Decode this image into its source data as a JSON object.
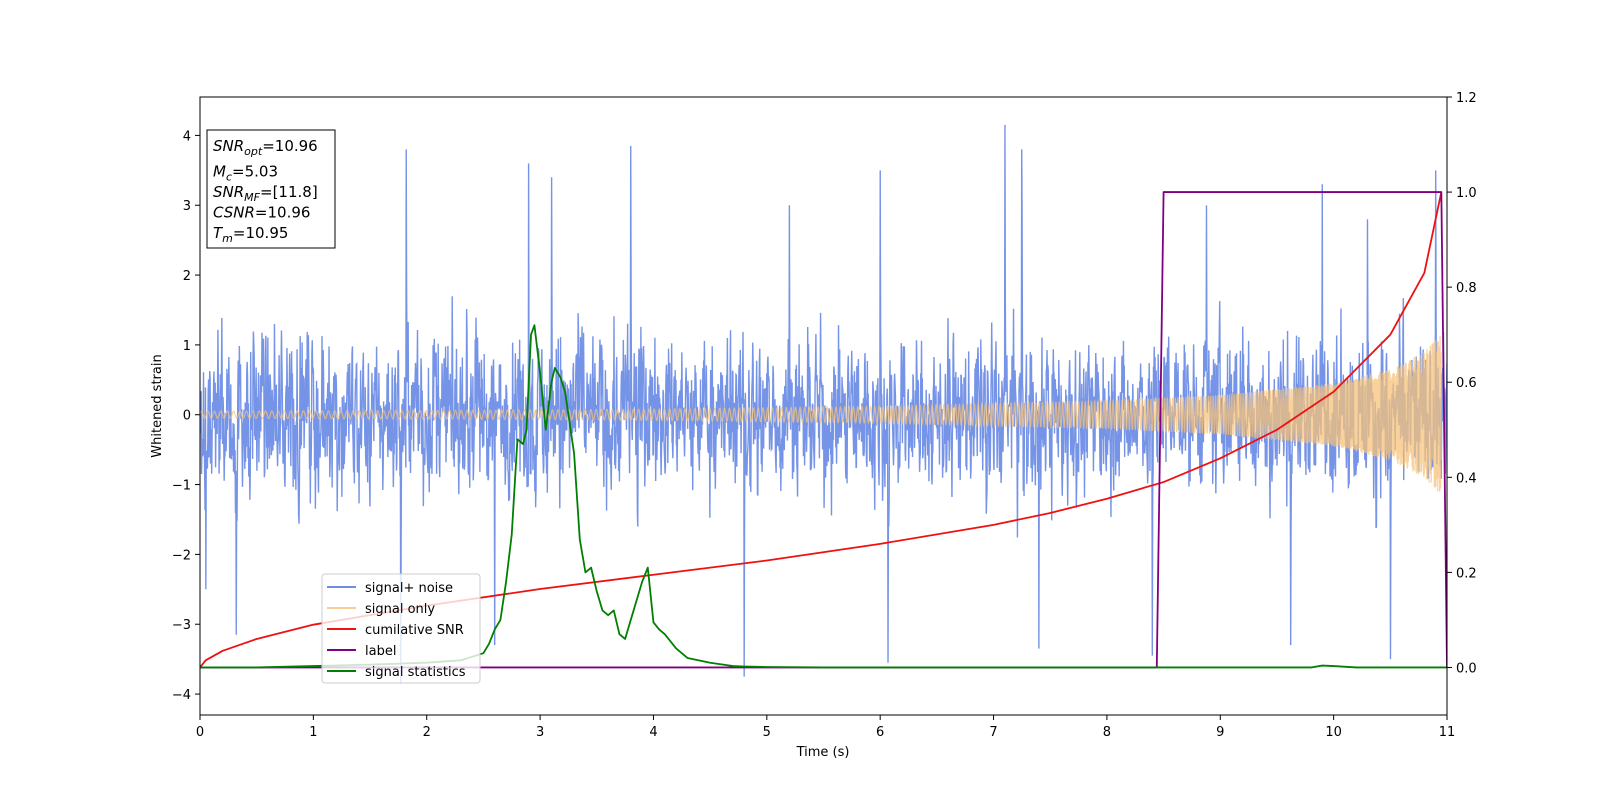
{
  "chart_data": {
    "type": "line",
    "xlabel": "Time (s)",
    "ylabel": "Whitened strain",
    "xlim": [
      0,
      11
    ],
    "ylim_left": [
      -4.3,
      4.55
    ],
    "ylim_right": [
      -0.1,
      1.2
    ],
    "xticks": [
      0,
      1,
      2,
      3,
      4,
      5,
      6,
      7,
      8,
      9,
      10,
      11
    ],
    "yticks_left": [
      -4,
      -3,
      -2,
      -1,
      0,
      1,
      2,
      3,
      4
    ],
    "yticks_left_labels": [
      "−4",
      "−3",
      "−2",
      "−1",
      "0",
      "1",
      "2",
      "3",
      "4"
    ],
    "yticks_right": [
      0.0,
      0.2,
      0.4,
      0.6,
      0.8,
      1.0,
      1.2
    ],
    "yticks_right_labels": [
      "0.0",
      "0.2",
      "0.4",
      "0.6",
      "0.8",
      "1.0",
      "1.2"
    ],
    "legend_placement": "lower-left",
    "series": [
      {
        "name": "signal+ noise",
        "axis": "left",
        "color": "#6f8ee6",
        "style": "dense-noise",
        "envelope": [
          [
            0.0,
            2.4
          ],
          [
            1.0,
            2.4
          ],
          [
            2.0,
            2.5
          ],
          [
            3.0,
            2.5
          ],
          [
            4.0,
            2.4
          ],
          [
            5.0,
            2.3
          ],
          [
            6.0,
            2.3
          ],
          [
            7.0,
            2.4
          ],
          [
            8.0,
            2.3
          ],
          [
            9.0,
            2.4
          ],
          [
            10.0,
            2.3
          ],
          [
            11.0,
            2.3
          ]
        ],
        "spikes": [
          [
            1.82,
            3.8
          ],
          [
            2.9,
            3.6
          ],
          [
            3.1,
            3.4
          ],
          [
            3.8,
            3.85
          ],
          [
            7.1,
            4.15
          ],
          [
            7.25,
            3.8
          ],
          [
            4.8,
            -3.75
          ],
          [
            1.77,
            -3.85
          ],
          [
            0.32,
            -3.15
          ],
          [
            5.2,
            3.0
          ],
          [
            6.0,
            3.5
          ],
          [
            6.07,
            -3.55
          ],
          [
            8.4,
            -3.45
          ],
          [
            10.9,
            3.5
          ],
          [
            10.5,
            -3.5
          ],
          [
            0.05,
            -2.5
          ],
          [
            2.6,
            -3.3
          ],
          [
            9.62,
            -3.3
          ],
          [
            7.4,
            -3.35
          ],
          [
            8.88,
            3.0
          ],
          [
            9.9,
            3.3
          ],
          [
            10.3,
            2.8
          ]
        ]
      },
      {
        "name": "signal only",
        "axis": "left",
        "color": "#f5c27a",
        "style": "chirp",
        "amplitude": [
          [
            0.0,
            0.05
          ],
          [
            2.0,
            0.06
          ],
          [
            4.0,
            0.08
          ],
          [
            6.0,
            0.12
          ],
          [
            8.0,
            0.2
          ],
          [
            9.0,
            0.28
          ],
          [
            10.0,
            0.45
          ],
          [
            10.5,
            0.65
          ],
          [
            10.8,
            0.9
          ],
          [
            10.95,
            1.15
          ]
        ]
      },
      {
        "name": "cumilative SNR",
        "axis": "right",
        "color": "#ee1111",
        "x": [
          0.0,
          0.05,
          0.2,
          0.5,
          1.0,
          1.5,
          2.0,
          3.0,
          4.0,
          5.0,
          6.0,
          7.0,
          7.5,
          8.0,
          8.5,
          9.0,
          9.5,
          10.0,
          10.5,
          10.8,
          10.95
        ],
        "y": [
          0.0,
          0.015,
          0.035,
          0.06,
          0.09,
          0.11,
          0.13,
          0.165,
          0.195,
          0.225,
          0.26,
          0.3,
          0.325,
          0.355,
          0.39,
          0.44,
          0.5,
          0.58,
          0.7,
          0.83,
          1.0
        ]
      },
      {
        "name": "label",
        "axis": "right",
        "color": "#800080",
        "x": [
          0.0,
          8.44,
          8.5,
          10.95,
          11.0
        ],
        "y": [
          0.0,
          0.0,
          1.0,
          1.0,
          0.0
        ]
      },
      {
        "name": "signal statistics",
        "axis": "right",
        "color": "#007f00",
        "x": [
          0.0,
          0.5,
          1.0,
          1.5,
          2.0,
          2.3,
          2.5,
          2.55,
          2.6,
          2.65,
          2.7,
          2.75,
          2.8,
          2.85,
          2.88,
          2.92,
          2.95,
          3.0,
          3.05,
          3.1,
          3.13,
          3.18,
          3.22,
          3.3,
          3.35,
          3.4,
          3.45,
          3.5,
          3.55,
          3.6,
          3.65,
          3.7,
          3.75,
          3.8,
          3.85,
          3.9,
          3.95,
          4.0,
          4.05,
          4.1,
          4.2,
          4.3,
          4.5,
          4.7,
          4.8,
          5.0,
          5.5,
          6.0,
          7.0,
          8.0,
          9.0,
          9.5,
          9.8,
          9.9,
          10.0,
          10.2,
          10.5,
          11.0
        ],
        "y": [
          0.0,
          0.0,
          0.003,
          0.006,
          0.01,
          0.015,
          0.03,
          0.05,
          0.08,
          0.1,
          0.18,
          0.28,
          0.48,
          0.47,
          0.5,
          0.7,
          0.72,
          0.62,
          0.5,
          0.6,
          0.63,
          0.61,
          0.58,
          0.45,
          0.27,
          0.2,
          0.21,
          0.16,
          0.12,
          0.11,
          0.12,
          0.07,
          0.06,
          0.1,
          0.14,
          0.18,
          0.21,
          0.095,
          0.08,
          0.07,
          0.04,
          0.02,
          0.01,
          0.003,
          0.002,
          0.001,
          0.0,
          0.0,
          0.0,
          0.0,
          0.0,
          0.0,
          0.0,
          0.004,
          0.003,
          0.0,
          0.0,
          0.0
        ]
      }
    ],
    "annotation": {
      "lines": [
        {
          "main": "SNR",
          "sub": "opt",
          "rest": "=10.96"
        },
        {
          "main": "M",
          "sub": "c",
          "rest": "=5.03"
        },
        {
          "main": "SNR",
          "sub": "MF",
          "rest": "=[11.8]"
        },
        {
          "main": "CSNR",
          "sub": "",
          "rest": "=10.96"
        },
        {
          "main": "T",
          "sub": "m",
          "rest": "=10.95"
        }
      ]
    }
  }
}
